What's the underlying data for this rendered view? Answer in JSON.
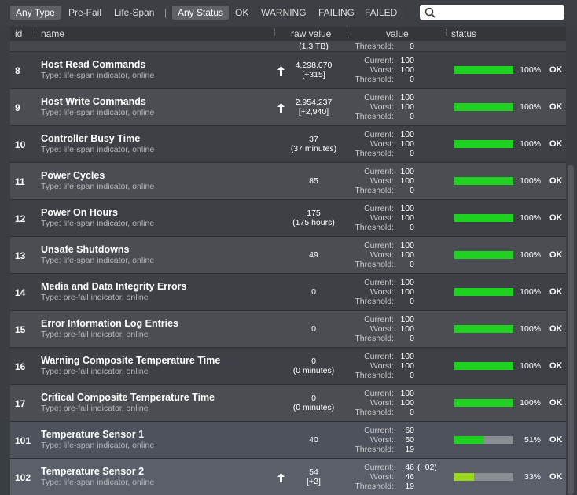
{
  "filters": {
    "type": [
      "Any Type",
      "Pre-Fail",
      "Life-Span"
    ],
    "status": [
      "Any Status",
      "OK",
      "WARNING",
      "FAILING",
      "FAILED"
    ]
  },
  "columns": [
    "id",
    "name",
    "raw value",
    "value",
    "status"
  ],
  "value_labels": [
    "Current:",
    "Worst:",
    "Threshold:"
  ],
  "partial_row": {
    "raw": "(1.3 TB)",
    "threshold": "0"
  },
  "rows": [
    {
      "id": "8",
      "name": "Host Read Commands",
      "type": "Type: life-span indicator, online",
      "raw": [
        "4,298,070",
        "[+315]"
      ],
      "trend": "up",
      "current": "100",
      "worst": "100",
      "threshold": "0",
      "percent": {
        "value": 100,
        "label": "100%"
      },
      "bar_color": "#1fd21f",
      "status": "OK"
    },
    {
      "id": "9",
      "name": "Host Write Commands",
      "type": "Type: life-span indicator, online",
      "raw": [
        "2,954,237",
        "[+2,940]"
      ],
      "trend": "up",
      "current": "100",
      "worst": "100",
      "threshold": "0",
      "percent": {
        "value": 100,
        "label": "100%"
      },
      "bar_color": "#1fd21f",
      "status": "OK"
    },
    {
      "id": "10",
      "name": "Controller Busy Time",
      "type": "Type: life-span indicator, online",
      "raw": [
        "37",
        "(37 minutes)"
      ],
      "current": "100",
      "worst": "100",
      "threshold": "0",
      "percent": {
        "value": 100,
        "label": "100%"
      },
      "bar_color": "#1fd21f",
      "status": "OK"
    },
    {
      "id": "11",
      "name": "Power Cycles",
      "type": "Type: life-span indicator, online",
      "raw": [
        "85"
      ],
      "current": "100",
      "worst": "100",
      "threshold": "0",
      "percent": {
        "value": 100,
        "label": "100%"
      },
      "bar_color": "#1fd21f",
      "status": "OK"
    },
    {
      "id": "12",
      "name": "Power On Hours",
      "type": "Type: life-span indicator, online",
      "raw": [
        "175",
        "(175 hours)"
      ],
      "current": "100",
      "worst": "100",
      "threshold": "0",
      "percent": {
        "value": 100,
        "label": "100%"
      },
      "bar_color": "#1fd21f",
      "status": "OK"
    },
    {
      "id": "13",
      "name": "Unsafe Shutdowns",
      "type": "Type: life-span indicator, online",
      "raw": [
        "49"
      ],
      "current": "100",
      "worst": "100",
      "threshold": "0",
      "percent": {
        "value": 100,
        "label": "100%"
      },
      "bar_color": "#1fd21f",
      "status": "OK"
    },
    {
      "id": "14",
      "name": "Media and Data Integrity Errors",
      "type": "Type: pre-fail indicator, online",
      "raw": [
        "0"
      ],
      "current": "100",
      "worst": "100",
      "threshold": "0",
      "percent": {
        "value": 100,
        "label": "100%"
      },
      "bar_color": "#1fd21f",
      "status": "OK"
    },
    {
      "id": "15",
      "name": "Error Information Log Entries",
      "type": "Type: pre-fail indicator, online",
      "raw": [
        "0"
      ],
      "current": "100",
      "worst": "100",
      "threshold": "0",
      "percent": {
        "value": 100,
        "label": "100%"
      },
      "bar_color": "#1fd21f",
      "status": "OK"
    },
    {
      "id": "16",
      "name": "Warning Composite Temperature Time",
      "type": "Type: pre-fail indicator, online",
      "raw": [
        "0",
        "(0 minutes)"
      ],
      "current": "100",
      "worst": "100",
      "threshold": "0",
      "percent": {
        "value": 100,
        "label": "100%"
      },
      "bar_color": "#1fd21f",
      "status": "OK"
    },
    {
      "id": "17",
      "name": "Critical Composite Temperature Time",
      "type": "Type: pre-fail indicator, online",
      "raw": [
        "0",
        "(0 minutes)"
      ],
      "current": "100",
      "worst": "100",
      "threshold": "0",
      "percent": {
        "value": 100,
        "label": "100%"
      },
      "bar_color": "#1fd21f",
      "status": "OK"
    },
    {
      "id": "101",
      "name": "Temperature Sensor 1",
      "type": "Type: life-span indicator, online",
      "raw": [
        "40"
      ],
      "current": "60",
      "worst": "60",
      "threshold": "19",
      "percent": {
        "value": 51,
        "label": "51%"
      },
      "bar_color": "#1fd21f",
      "status": "OK"
    },
    {
      "id": "102",
      "name": "Temperature Sensor 2",
      "type": "Type: life-span indicator, online",
      "raw": [
        "54",
        "[+2]"
      ],
      "trend": "up",
      "current": "46",
      "delta": "(−02)",
      "worst": "46",
      "threshold": "19",
      "percent": {
        "value": 33,
        "label": "33%"
      },
      "bar_color": "#9ad81a",
      "status": "OK"
    }
  ]
}
